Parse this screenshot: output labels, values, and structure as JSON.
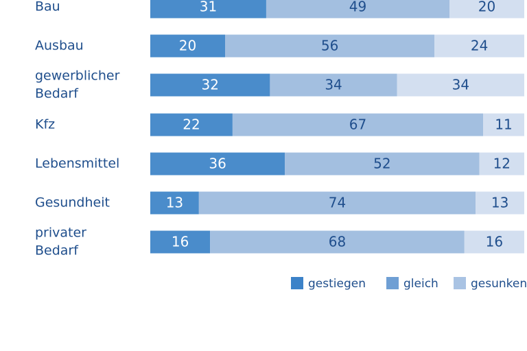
{
  "chart_data": {
    "type": "bar",
    "orientation": "horizontal",
    "stacked": true,
    "title": "",
    "xlabel": "",
    "ylabel": "",
    "xlim": [
      0,
      100
    ],
    "categories": [
      [
        "Bau"
      ],
      [
        "Ausbau"
      ],
      [
        "gewerblicher",
        "Bedarf"
      ],
      [
        "Kfz"
      ],
      [
        "Lebensmittel"
      ],
      [
        "Gesundheit"
      ],
      [
        "privater",
        "Bedarf"
      ]
    ],
    "series": [
      {
        "name": "gestiegen",
        "color": "#4a8ccb",
        "text_color": "#ffffff",
        "values": [
          31,
          20,
          32,
          22,
          36,
          13,
          16
        ]
      },
      {
        "name": "gleich",
        "color": "#a3bfe0",
        "text_color": "#1f4e8c",
        "values": [
          49,
          56,
          34,
          67,
          52,
          74,
          68
        ]
      },
      {
        "name": "gesunken",
        "color": "#d3dff0",
        "text_color": "#1f4e8c",
        "values": [
          20,
          24,
          34,
          11,
          12,
          13,
          16
        ]
      }
    ],
    "legend": {
      "position": "bottom-right",
      "entries": [
        {
          "label": "gestiegen",
          "color": "#3c82c8"
        },
        {
          "label": "gleich",
          "color": "#6f9fd4"
        },
        {
          "label": "gesunken",
          "color": "#a9c3e3"
        }
      ]
    },
    "grid": false
  }
}
